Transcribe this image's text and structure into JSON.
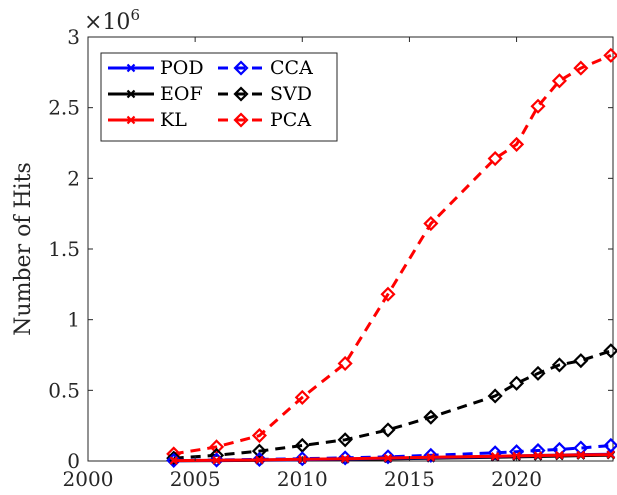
{
  "chart_data": {
    "type": "line",
    "ylabel": "Number of Hits",
    "xlabel": "",
    "multiplier_base": "×10",
    "multiplier_exp": "6",
    "xlim": [
      2000,
      2024.5
    ],
    "ylim": [
      0,
      3
    ],
    "xticks": [
      "2000",
      "2005",
      "2010",
      "2015",
      "2020"
    ],
    "xtick_values": [
      2000,
      2005,
      2010,
      2015,
      2020
    ],
    "yticks": [
      "0",
      "0.5",
      "1",
      "1.5",
      "2",
      "2.5",
      "3"
    ],
    "ytick_values": [
      0,
      0.5,
      1,
      1.5,
      2,
      2.5,
      3
    ],
    "grid": false,
    "legend_position": "top-left",
    "series": [
      {
        "name": "POD",
        "color": "#0000ff",
        "style": "solid",
        "marker": "x-icon",
        "x": [
          2004,
          2006,
          2008,
          2010,
          2012,
          2014,
          2016,
          2019,
          2020,
          2021,
          2022,
          2023,
          2024.4
        ],
        "y": [
          0.002,
          0.004,
          0.007,
          0.01,
          0.014,
          0.019,
          0.024,
          0.032,
          0.036,
          0.039,
          0.042,
          0.045,
          0.048
        ]
      },
      {
        "name": "EOF",
        "color": "#000000",
        "style": "solid",
        "marker": "x-icon",
        "x": [
          2004,
          2006,
          2008,
          2010,
          2012,
          2014,
          2016,
          2019,
          2020,
          2021,
          2022,
          2023,
          2024.4
        ],
        "y": [
          0.002,
          0.003,
          0.005,
          0.008,
          0.011,
          0.015,
          0.019,
          0.026,
          0.029,
          0.032,
          0.035,
          0.038,
          0.041
        ]
      },
      {
        "name": "KL",
        "color": "#ff0000",
        "style": "solid",
        "marker": "x-icon",
        "x": [
          2004,
          2006,
          2008,
          2010,
          2012,
          2014,
          2016,
          2019,
          2020,
          2021,
          2022,
          2023,
          2024.4
        ],
        "y": [
          0.003,
          0.005,
          0.008,
          0.012,
          0.016,
          0.021,
          0.026,
          0.033,
          0.036,
          0.039,
          0.041,
          0.043,
          0.045
        ]
      },
      {
        "name": "CCA",
        "color": "#0000ff",
        "style": "dashed",
        "marker": "diamond-icon",
        "x": [
          2004,
          2006,
          2008,
          2010,
          2012,
          2014,
          2016,
          2019,
          2020,
          2021,
          2022,
          2023,
          2024.4
        ],
        "y": [
          0.004,
          0.007,
          0.011,
          0.016,
          0.022,
          0.03,
          0.04,
          0.058,
          0.066,
          0.074,
          0.082,
          0.092,
          0.11
        ]
      },
      {
        "name": "SVD",
        "color": "#000000",
        "style": "dashed",
        "marker": "diamond-icon",
        "x": [
          2004,
          2006,
          2008,
          2010,
          2012,
          2014,
          2016,
          2019,
          2020,
          2021,
          2022,
          2023,
          2024.4
        ],
        "y": [
          0.02,
          0.04,
          0.07,
          0.11,
          0.15,
          0.22,
          0.31,
          0.46,
          0.55,
          0.62,
          0.68,
          0.71,
          0.78
        ]
      },
      {
        "name": "PCA",
        "color": "#ff0000",
        "style": "dashed",
        "marker": "diamond-icon",
        "x": [
          2004,
          2006,
          2008,
          2010,
          2012,
          2014,
          2016,
          2019,
          2020,
          2021,
          2022,
          2023,
          2024.4
        ],
        "y": [
          0.05,
          0.1,
          0.18,
          0.45,
          0.69,
          1.18,
          1.68,
          2.14,
          2.24,
          2.51,
          2.69,
          2.78,
          2.87
        ]
      }
    ]
  }
}
